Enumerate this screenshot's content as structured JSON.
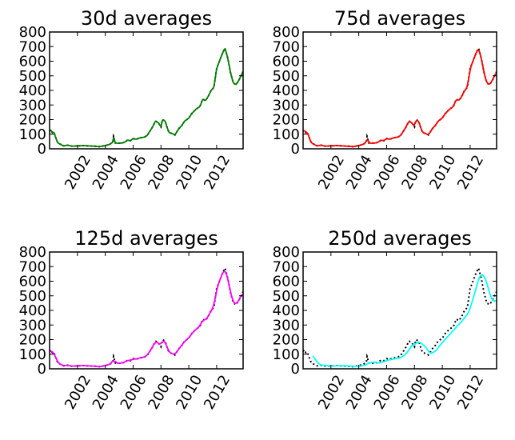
{
  "chart_data": [
    {
      "type": "line",
      "title": "30d averages",
      "xlabel": "",
      "ylabel": "",
      "xlim": [
        2000.0,
        2013.9
      ],
      "ylim": [
        0,
        800
      ],
      "xticks": [
        "2002",
        "2004",
        "2006",
        "2008",
        "2010",
        "2012"
      ],
      "yticks": [
        "0",
        "100",
        "200",
        "300",
        "400",
        "500",
        "600",
        "700",
        "800"
      ],
      "grid": false,
      "series": [
        {
          "style": "dotted",
          "color": "#000000",
          "role": "price"
        },
        {
          "style": "solid",
          "color": "#008000",
          "role": "moving-average",
          "window_days": 30
        }
      ]
    },
    {
      "type": "line",
      "title": "75d averages",
      "xlabel": "",
      "ylabel": "",
      "xlim": [
        2000.0,
        2013.9
      ],
      "ylim": [
        0,
        800
      ],
      "xticks": [
        "2002",
        "2004",
        "2006",
        "2008",
        "2010",
        "2012"
      ],
      "yticks": [
        "0",
        "100",
        "200",
        "300",
        "400",
        "500",
        "600",
        "700",
        "800"
      ],
      "grid": false,
      "series": [
        {
          "style": "dotted",
          "color": "#000000",
          "role": "price"
        },
        {
          "style": "solid",
          "color": "#ff0000",
          "role": "moving-average",
          "window_days": 75
        }
      ]
    },
    {
      "type": "line",
      "title": "125d averages",
      "xlabel": "",
      "ylabel": "",
      "xlim": [
        2000.0,
        2013.9
      ],
      "ylim": [
        0,
        800
      ],
      "xticks": [
        "2002",
        "2004",
        "2006",
        "2008",
        "2010",
        "2012"
      ],
      "yticks": [
        "0",
        "100",
        "200",
        "300",
        "400",
        "500",
        "600",
        "700",
        "800"
      ],
      "grid": false,
      "series": [
        {
          "style": "dotted",
          "color": "#000000",
          "role": "price"
        },
        {
          "style": "solid",
          "color": "#ff00ff",
          "role": "moving-average",
          "window_days": 125
        }
      ]
    },
    {
      "type": "line",
      "title": "250d averages",
      "xlabel": "",
      "ylabel": "",
      "xlim": [
        2000.0,
        2013.9
      ],
      "ylim": [
        0,
        800
      ],
      "xticks": [
        "2002",
        "2004",
        "2006",
        "2008",
        "2010",
        "2012"
      ],
      "yticks": [
        "0",
        "100",
        "200",
        "300",
        "400",
        "500",
        "600",
        "700",
        "800"
      ],
      "grid": false,
      "series": [
        {
          "style": "dotted",
          "color": "#000000",
          "role": "price"
        },
        {
          "style": "solid",
          "color": "#00ffff",
          "role": "moving-average",
          "window_days": 250
        }
      ]
    }
  ],
  "price_series": {
    "x": [
      2000.0,
      2000.1,
      2000.2,
      2000.3,
      2000.4,
      2000.5,
      2000.6,
      2000.8,
      2001.0,
      2001.3,
      2001.6,
      2002.0,
      2002.4,
      2002.8,
      2003.2,
      2003.6,
      2004.0,
      2004.3,
      2004.55,
      2004.6,
      2004.7,
      2004.9,
      2005.2,
      2005.4,
      2005.6,
      2005.8,
      2006.0,
      2006.2,
      2006.5,
      2006.8,
      2007.0,
      2007.2,
      2007.4,
      2007.6,
      2007.8,
      2008.0,
      2008.1,
      2008.3,
      2008.5,
      2008.6,
      2008.8,
      2009.0,
      2009.1,
      2009.3,
      2009.5,
      2009.7,
      2010.0,
      2010.2,
      2010.5,
      2010.8,
      2011.0,
      2011.2,
      2011.4,
      2011.6,
      2011.8,
      2012.0,
      2012.2,
      2012.4,
      2012.6,
      2012.8,
      2013.0,
      2013.2,
      2013.4,
      2013.6,
      2013.9
    ],
    "y": [
      120,
      130,
      110,
      115,
      90,
      60,
      40,
      30,
      20,
      25,
      18,
      20,
      22,
      20,
      18,
      15,
      22,
      30,
      45,
      90,
      40,
      38,
      40,
      45,
      60,
      55,
      70,
      65,
      75,
      80,
      90,
      120,
      150,
      190,
      180,
      150,
      200,
      190,
      130,
      110,
      105,
      95,
      110,
      140,
      160,
      190,
      210,
      240,
      270,
      290,
      340,
      330,
      360,
      400,
      420,
      550,
      600,
      650,
      690,
      620,
      520,
      450,
      440,
      470,
      530
    ]
  }
}
